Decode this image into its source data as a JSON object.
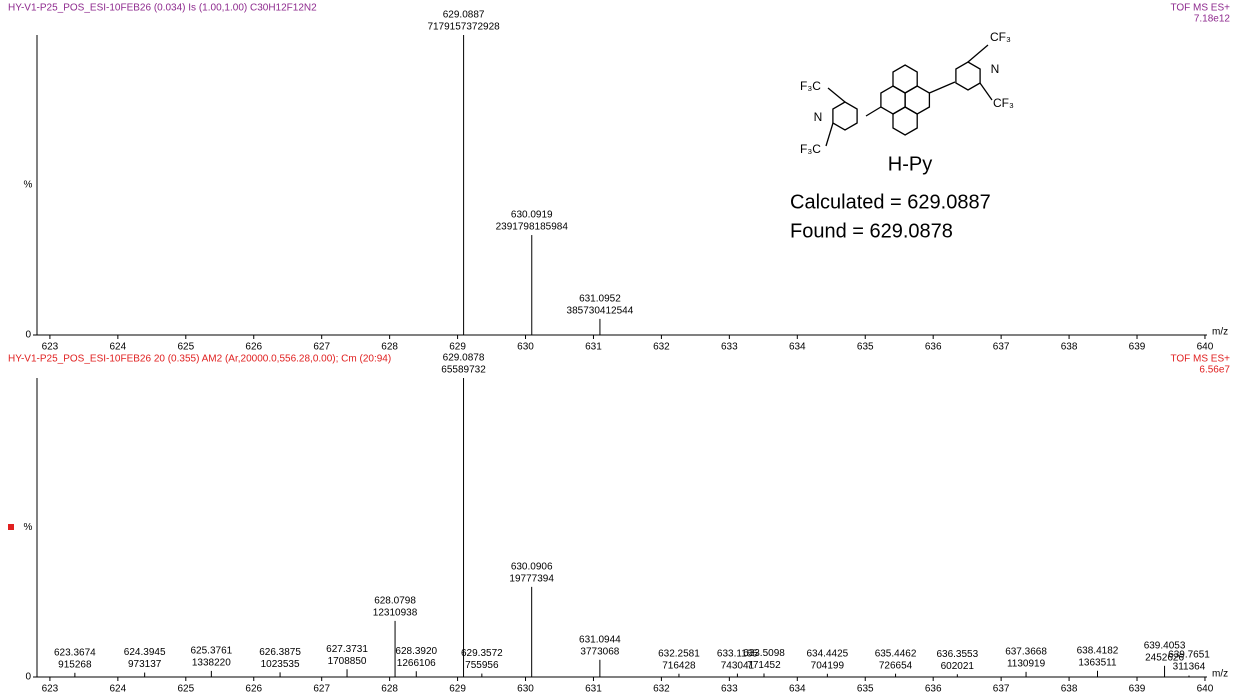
{
  "chart_data": [
    {
      "type": "spectrum",
      "title": "HY-V1-P25_POS_ESI-10FEB26  (0.034) Is (1.00,1.00) C30H12F12N2",
      "instrument": "TOF MS ES+",
      "full_scale_label": "7.18e12",
      "title_color": "#8e2a8e",
      "x_label": "m/z",
      "y_label": "%",
      "xlim": [
        622.81,
        640.03
      ],
      "xticks": [
        623,
        624,
        625,
        626,
        627,
        628,
        629,
        630,
        631,
        632,
        633,
        634,
        635,
        636,
        637,
        638,
        639,
        640
      ],
      "ylim": [
        0,
        7180000000000
      ],
      "yticks": [
        0
      ],
      "series": [
        {
          "name": "isotope model",
          "color": "#000000",
          "x": [
            629.0887,
            630.0919,
            631.0952
          ],
          "values": [
            7179157372928,
            2391798185984,
            385730412544
          ]
        }
      ],
      "compound": "H-Py",
      "annotations": [
        "Calculated = 629.0887",
        "Found = 629.0878"
      ],
      "structure_labels": [
        "F₃C",
        "N",
        "F₃C",
        "CF₃",
        "N",
        "CF₃"
      ]
    },
    {
      "type": "spectrum",
      "title": "HY-V1-P25_POS_ESI-10FEB26 20 (0.355) AM2 (Ar,20000.0,556.28,0.00); Cm (20:94)",
      "instrument": "TOF MS ES+",
      "full_scale_label": "6.56e7",
      "title_color": "#e02020",
      "x_label": "m/z",
      "y_label": "%",
      "xlim": [
        622.81,
        640.03
      ],
      "xticks": [
        623,
        624,
        625,
        626,
        627,
        628,
        629,
        630,
        631,
        632,
        633,
        634,
        635,
        636,
        637,
        638,
        639,
        640
      ],
      "ylim": [
        0,
        65600000
      ],
      "yticks": [
        0
      ],
      "series": [
        {
          "name": "measured",
          "color": "#000000",
          "x": [
            623.3674,
            624.3945,
            625.3761,
            626.3875,
            627.3731,
            628.0798,
            {
              "value": 628.392,
              "label": "628.3920"
            },
            629.0878,
            629.3572,
            630.0906,
            631.0944,
            632.2581,
            633.1185,
            633.5098,
            634.4425,
            635.4462,
            636.3553,
            637.3668,
            638.4182,
            639.4053,
            639.7651
          ],
          "values": [
            915268,
            973137,
            1338220,
            1023535,
            1708850,
            12310938,
            1266106,
            65589732,
            755956,
            19777394,
            3773068,
            716428,
            743041,
            771452,
            704199,
            726654,
            602021,
            1130919,
            1363511,
            2452626,
            311364
          ]
        }
      ]
    }
  ]
}
